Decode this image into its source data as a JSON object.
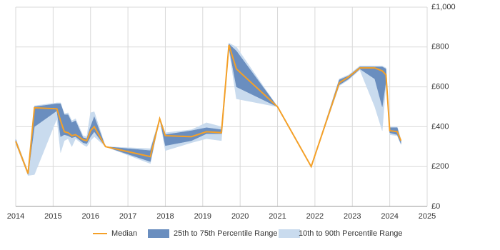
{
  "chart_data": {
    "type": "line-range",
    "x": [
      2014.0,
      2014.33,
      2014.5,
      2015.1,
      2015.2,
      2015.3,
      2015.4,
      2015.5,
      2015.6,
      2015.8,
      2015.9,
      2016.0,
      2016.1,
      2016.4,
      2017.6,
      2017.85,
      2018.0,
      2018.7,
      2019.1,
      2019.5,
      2019.7,
      2019.9,
      2021.0,
      2021.9,
      2022.65,
      2022.9,
      2023.2,
      2023.6,
      2023.8,
      2023.9,
      2024.0,
      2024.2,
      2024.3
    ],
    "bands": [
      {
        "name": "10th to 90th Percentile Range",
        "color": "#c9dbee",
        "low": [
          315,
          155,
          160,
          440,
          270,
          330,
          340,
          300,
          340,
          310,
          300,
          330,
          350,
          300,
          215,
          440,
          280,
          320,
          340,
          330,
          790,
          540,
          500,
          200,
          605,
          635,
          685,
          500,
          380,
          620,
          360,
          355,
          310
        ],
        "high": [
          340,
          175,
          505,
          520,
          520,
          465,
          470,
          430,
          440,
          355,
          350,
          470,
          475,
          300,
          290,
          445,
          370,
          385,
          420,
          400,
          820,
          800,
          500,
          200,
          640,
          660,
          705,
          705,
          705,
          695,
          400,
          400,
          335
        ]
      },
      {
        "name": "25th to 75th Percentile Range",
        "color": "#6a8ebf",
        "low": [
          320,
          160,
          400,
          480,
          350,
          360,
          355,
          345,
          350,
          320,
          315,
          350,
          375,
          300,
          225,
          440,
          305,
          330,
          365,
          365,
          800,
          600,
          500,
          200,
          610,
          640,
          690,
          640,
          500,
          630,
          370,
          360,
          315
        ],
        "high": [
          335,
          170,
          500,
          515,
          515,
          460,
          460,
          420,
          430,
          345,
          340,
          400,
          450,
          300,
          280,
          440,
          360,
          380,
          395,
          385,
          815,
          780,
          500,
          200,
          635,
          655,
          700,
          700,
          700,
          690,
          395,
          395,
          330
        ]
      }
    ],
    "series": [
      {
        "name": "Median",
        "color": "#f4a028",
        "values": [
          326,
          165,
          495,
          490,
          430,
          375,
          370,
          355,
          360,
          335,
          330,
          380,
          400,
          300,
          250,
          440,
          355,
          350,
          375,
          370,
          810,
          690,
          500,
          200,
          620,
          650,
          695,
          695,
          680,
          660,
          380,
          375,
          330
        ]
      }
    ],
    "xlim": [
      2014,
      2025
    ],
    "xticks": [
      2014,
      2015,
      2016,
      2017,
      2018,
      2019,
      2020,
      2021,
      2022,
      2023,
      2024,
      2025
    ],
    "ylim": [
      0,
      1000
    ],
    "yticks": [
      {
        "value": 0,
        "label": "£0"
      },
      {
        "value": 200,
        "label": "£200"
      },
      {
        "value": 400,
        "label": "£400"
      },
      {
        "value": 600,
        "label": "£600"
      },
      {
        "value": 800,
        "label": "£800"
      },
      {
        "value": 1000,
        "label": "£1,000"
      }
    ],
    "grid": true,
    "legend": "bottom"
  }
}
